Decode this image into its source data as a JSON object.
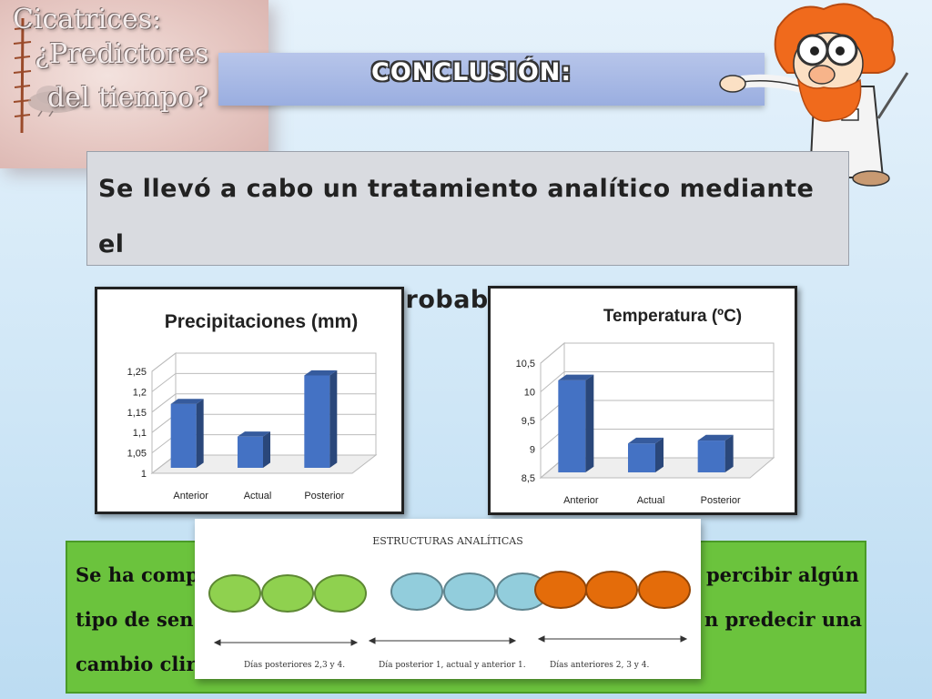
{
  "title_card": {
    "line1": "Cicatrices:",
    "line2": "¿Predictores",
    "line3": "del tiempo?"
  },
  "header": {
    "title": "CONCLUSIÓN:"
  },
  "statement": {
    "line1": "Se llevó a cabo un tratamiento analítico mediante el",
    "line2": "test Chi-cuadrado y probabilidad."
  },
  "charts": [
    {
      "title": "Precipitaciones (mm)"
    },
    {
      "title": "Temperatura (ºC)"
    }
  ],
  "chart_data": [
    {
      "type": "bar",
      "title": "Precipitaciones (mm)",
      "categories": [
        "Anterior",
        "Actual",
        "Posterior"
      ],
      "values": [
        1.17,
        1.09,
        1.24
      ],
      "ylim": [
        1,
        1.25
      ],
      "yticks": [
        "1",
        "1,05",
        "1,1",
        "1,15",
        "1,2",
        "1,25"
      ],
      "color": "#4472c4"
    },
    {
      "type": "bar",
      "title": "Temperatura (ºC)",
      "categories": [
        "Anterior",
        "Actual",
        "Posterior"
      ],
      "values": [
        10.2,
        9.1,
        9.15
      ],
      "ylim": [
        8.5,
        10.5
      ],
      "yticks": [
        "8,5",
        "9",
        "9,5",
        "10",
        "10,5"
      ],
      "color": "#4472c4"
    }
  ],
  "conclusion_box": {
    "left1": "Se ha comp",
    "right1": "percibir algún",
    "left2": "tipo de sen",
    "right2": "n predecir una",
    "left3": "cambio clir"
  },
  "structures": {
    "title": "ESTRUCTURAS ANALÍTICAS",
    "groups": [
      {
        "label": "Días posteriores 2,3 y 4.",
        "color": "#8fd14f"
      },
      {
        "label": "Día posterior 1, actual y anterior 1.",
        "color": "#92cddc"
      },
      {
        "label": "Días anteriores 2, 3 y 4.",
        "color": "#e46c0a"
      }
    ]
  }
}
